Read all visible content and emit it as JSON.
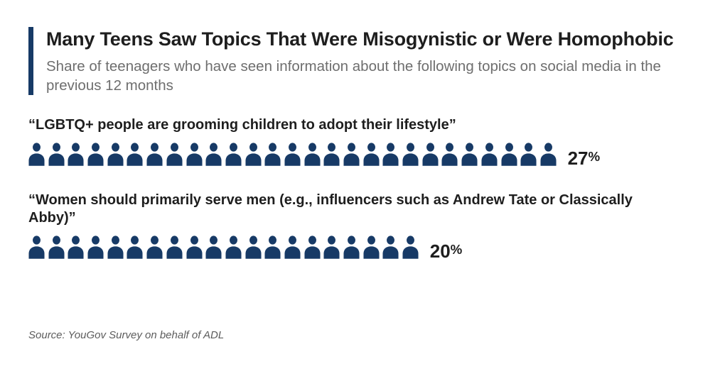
{
  "header": {
    "title": "Many Teens Saw Topics That Were Misogynistic or Were Homophobic",
    "subtitle": "Share of teenagers who have seen information about the following topics on social media in the previous 12 months"
  },
  "chart_data": {
    "type": "bar",
    "subtype": "pictogram",
    "icon": "person-icon",
    "icon_unit": "1 icon = 1 percentage point",
    "categories": [
      "“LGBTQ+ people are grooming children to adopt their lifestyle”",
      "“Women should primarily serve men (e.g., influencers such as Andrew Tate or Classically Abby)”"
    ],
    "values": [
      27,
      20
    ],
    "value_labels": [
      "27%",
      "20%"
    ],
    "title": "Many Teens Saw Topics That Were Misogynistic or Were Homophobic",
    "xlabel": "",
    "ylabel": "",
    "xlim": [
      0,
      30
    ],
    "legend": "none",
    "grid": false
  },
  "source": "Source: YouGov Survey on behalf of ADL",
  "colors": {
    "accent_navy": "#173a66",
    "icon_navy": "#173a66",
    "title_text": "#1e1e1e",
    "subtitle_gray": "#6e6e6e",
    "source_gray": "#5c5c5c"
  }
}
